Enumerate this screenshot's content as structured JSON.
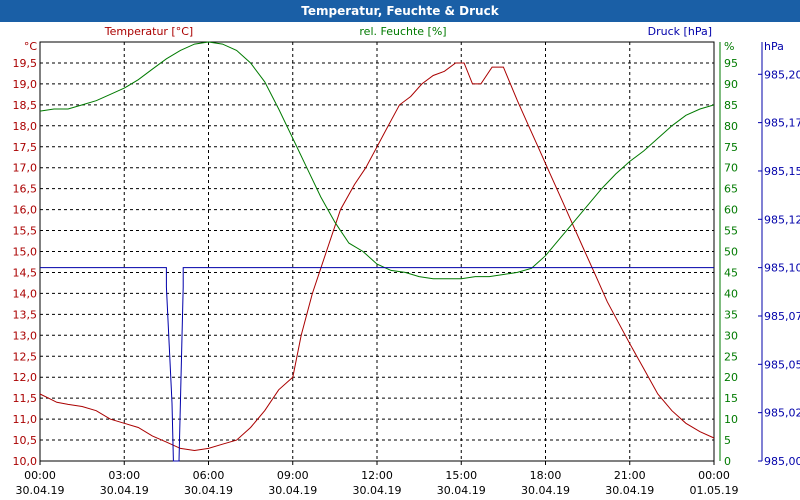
{
  "window": {
    "title": "Temperatur, Feuchte & Druck"
  },
  "chart_data": {
    "type": "line",
    "title": "Temperatur, Feuchte & Druck",
    "grid": true,
    "colors": {
      "temperature": "#aa0000",
      "humidity": "#007a00",
      "pressure": "#0000aa",
      "background": "#ffffff",
      "title_bar": "#1a5fa6"
    },
    "x_ticks": [
      {
        "time": "00:00",
        "date": "30.04.19"
      },
      {
        "time": "03:00",
        "date": "30.04.19"
      },
      {
        "time": "06:00",
        "date": "30.04.19"
      },
      {
        "time": "09:00",
        "date": "30.04.19"
      },
      {
        "time": "12:00",
        "date": "30.04.19"
      },
      {
        "time": "15:00",
        "date": "30.04.19"
      },
      {
        "time": "18:00",
        "date": "30.04.19"
      },
      {
        "time": "21:00",
        "date": "30.04.19"
      },
      {
        "time": "00:00",
        "date": "01.05.19"
      }
    ],
    "axes": {
      "temperature": {
        "label": "Temperatur [°C]",
        "unit": "°C",
        "min": 10.0,
        "max": 20.0,
        "ticks": [
          "10,0",
          "10,5",
          "11,0",
          "11,5",
          "12,0",
          "12,5",
          "13,0",
          "13,5",
          "14,0",
          "14,5",
          "15,0",
          "15,5",
          "16,0",
          "16,5",
          "17,0",
          "17,5",
          "18,0",
          "18,5",
          "19,0",
          "19,5"
        ]
      },
      "humidity": {
        "label": "rel. Feuchte [%]",
        "unit": "%",
        "min": 0,
        "max": 100,
        "ticks": [
          "0",
          "5",
          "10",
          "15",
          "20",
          "25",
          "30",
          "35",
          "40",
          "45",
          "50",
          "55",
          "60",
          "65",
          "70",
          "75",
          "80",
          "85",
          "90",
          "95"
        ]
      },
      "pressure": {
        "label": "Druck [hPa]",
        "unit": "hPa",
        "min": 985.0,
        "max": 985.2167,
        "ticks": [
          {
            "label": "985,00",
            "value": 985.0
          },
          {
            "label": "985,02",
            "value": 985.025
          },
          {
            "label": "985,05",
            "value": 985.05
          },
          {
            "label": "985,07",
            "value": 985.075
          },
          {
            "label": "985,10",
            "value": 985.1
          },
          {
            "label": "985,12",
            "value": 985.125
          },
          {
            "label": "985,15",
            "value": 985.15
          },
          {
            "label": "985,17",
            "value": 985.175
          },
          {
            "label": "985,20",
            "value": 985.2
          }
        ]
      }
    },
    "series": [
      {
        "name": "Temperatur [°C]",
        "axis": "temperature",
        "points": [
          [
            0.0,
            11.6
          ],
          [
            0.3,
            11.5
          ],
          [
            0.6,
            11.4
          ],
          [
            1.0,
            11.35
          ],
          [
            1.5,
            11.3
          ],
          [
            2.0,
            11.2
          ],
          [
            2.5,
            11.0
          ],
          [
            3.0,
            10.9
          ],
          [
            3.5,
            10.8
          ],
          [
            4.0,
            10.6
          ],
          [
            4.5,
            10.45
          ],
          [
            5.0,
            10.3
          ],
          [
            5.5,
            10.25
          ],
          [
            6.0,
            10.3
          ],
          [
            6.5,
            10.4
          ],
          [
            7.0,
            10.5
          ],
          [
            7.5,
            10.8
          ],
          [
            8.0,
            11.2
          ],
          [
            8.5,
            11.7
          ],
          [
            9.0,
            12.0
          ],
          [
            9.3,
            13.0
          ],
          [
            9.7,
            14.0
          ],
          [
            10.2,
            15.0
          ],
          [
            10.7,
            16.0
          ],
          [
            11.2,
            16.6
          ],
          [
            11.6,
            17.0
          ],
          [
            12.0,
            17.5
          ],
          [
            12.4,
            18.0
          ],
          [
            12.8,
            18.5
          ],
          [
            13.2,
            18.7
          ],
          [
            13.6,
            19.0
          ],
          [
            14.0,
            19.2
          ],
          [
            14.4,
            19.3
          ],
          [
            14.8,
            19.5
          ],
          [
            15.1,
            19.5
          ],
          [
            15.4,
            19.0
          ],
          [
            15.7,
            19.0
          ],
          [
            16.1,
            19.4
          ],
          [
            16.5,
            19.4
          ],
          [
            17.0,
            18.6
          ],
          [
            17.4,
            18.0
          ],
          [
            17.8,
            17.4
          ],
          [
            18.2,
            16.8
          ],
          [
            18.6,
            16.2
          ],
          [
            19.0,
            15.6
          ],
          [
            19.4,
            15.0
          ],
          [
            19.8,
            14.4
          ],
          [
            20.2,
            13.8
          ],
          [
            20.6,
            13.3
          ],
          [
            21.0,
            12.8
          ],
          [
            21.5,
            12.2
          ],
          [
            22.0,
            11.6
          ],
          [
            22.5,
            11.2
          ],
          [
            23.0,
            10.9
          ],
          [
            23.5,
            10.7
          ],
          [
            24.0,
            10.55
          ]
        ]
      },
      {
        "name": "rel. Feuchte [%]",
        "axis": "humidity",
        "points": [
          [
            0.0,
            83.5
          ],
          [
            0.5,
            84
          ],
          [
            1.0,
            84
          ],
          [
            1.5,
            85
          ],
          [
            2.0,
            86
          ],
          [
            2.5,
            87.5
          ],
          [
            3.0,
            89
          ],
          [
            3.5,
            91
          ],
          [
            4.0,
            93.5
          ],
          [
            4.5,
            96
          ],
          [
            5.0,
            98
          ],
          [
            5.5,
            99.5
          ],
          [
            6.0,
            100
          ],
          [
            6.5,
            99.5
          ],
          [
            7.0,
            98
          ],
          [
            7.5,
            95
          ],
          [
            8.0,
            90.5
          ],
          [
            8.5,
            84
          ],
          [
            9.0,
            77
          ],
          [
            9.5,
            70
          ],
          [
            10.0,
            63
          ],
          [
            10.5,
            57
          ],
          [
            11.0,
            52
          ],
          [
            11.5,
            50
          ],
          [
            12.0,
            47
          ],
          [
            12.5,
            45.5
          ],
          [
            13.0,
            45
          ],
          [
            13.5,
            44
          ],
          [
            14.0,
            43.5
          ],
          [
            14.5,
            43.5
          ],
          [
            15.0,
            43.5
          ],
          [
            15.5,
            44
          ],
          [
            16.0,
            44
          ],
          [
            16.5,
            44.5
          ],
          [
            17.0,
            45
          ],
          [
            17.5,
            46
          ],
          [
            18.0,
            49
          ],
          [
            18.5,
            53
          ],
          [
            19.0,
            57
          ],
          [
            19.5,
            61
          ],
          [
            20.0,
            65
          ],
          [
            20.5,
            68.5
          ],
          [
            21.0,
            71.5
          ],
          [
            21.5,
            74
          ],
          [
            22.0,
            77
          ],
          [
            22.5,
            80
          ],
          [
            23.0,
            82.5
          ],
          [
            23.5,
            84
          ],
          [
            24.0,
            85
          ]
        ]
      },
      {
        "name": "Druck [hPa]",
        "axis": "pressure",
        "points": [
          [
            0.0,
            985.1
          ],
          [
            4.5,
            985.1
          ],
          [
            4.5,
            985.09
          ],
          [
            4.6,
            985.06
          ],
          [
            4.7,
            985.03
          ],
          [
            4.75,
            985.0
          ],
          [
            4.95,
            985.0
          ],
          [
            5.0,
            985.03
          ],
          [
            5.05,
            985.06
          ],
          [
            5.1,
            985.09
          ],
          [
            5.1,
            985.1
          ],
          [
            24.0,
            985.1
          ]
        ]
      }
    ]
  }
}
